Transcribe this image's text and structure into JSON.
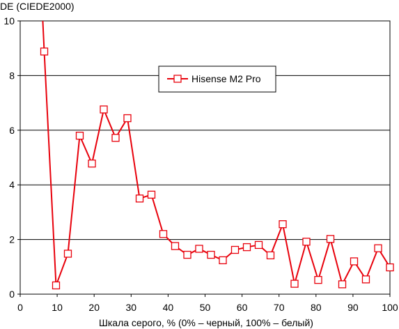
{
  "chart_data": {
    "type": "line",
    "ylabel": "DE (CIEDE2000)",
    "xlabel": "Шкала серого, % (0% – черный, 100% – белый)",
    "xlim": [
      0,
      100
    ],
    "ylim": [
      0,
      10
    ],
    "xticks": [
      0,
      10,
      20,
      30,
      40,
      50,
      60,
      70,
      80,
      90,
      100
    ],
    "yticks": [
      0,
      2,
      4,
      6,
      8,
      10
    ],
    "grid": "horizontal",
    "legend_position": "top-center",
    "series": [
      {
        "name": "Hisense M2 Pro",
        "color": "#e8000b",
        "marker": "open-square",
        "clip_top": [
          5.9,
          10.6
        ],
        "x": [
          6.5,
          9.7,
          12.9,
          16.1,
          19.4,
          22.6,
          25.8,
          29.0,
          32.3,
          35.5,
          38.7,
          41.9,
          45.2,
          48.4,
          51.6,
          54.8,
          58.1,
          61.3,
          64.5,
          67.7,
          71.0,
          74.2,
          77.4,
          80.6,
          83.9,
          87.1,
          90.3,
          93.5,
          96.8,
          100.0
        ],
        "y": [
          8.88,
          0.32,
          1.48,
          5.8,
          4.78,
          6.76,
          5.72,
          6.44,
          3.5,
          3.64,
          2.2,
          1.76,
          1.44,
          1.66,
          1.44,
          1.24,
          1.62,
          1.72,
          1.8,
          1.42,
          2.56,
          0.38,
          1.92,
          0.52,
          2.02,
          0.36,
          1.2,
          0.54,
          1.68,
          0.98
        ]
      }
    ]
  }
}
